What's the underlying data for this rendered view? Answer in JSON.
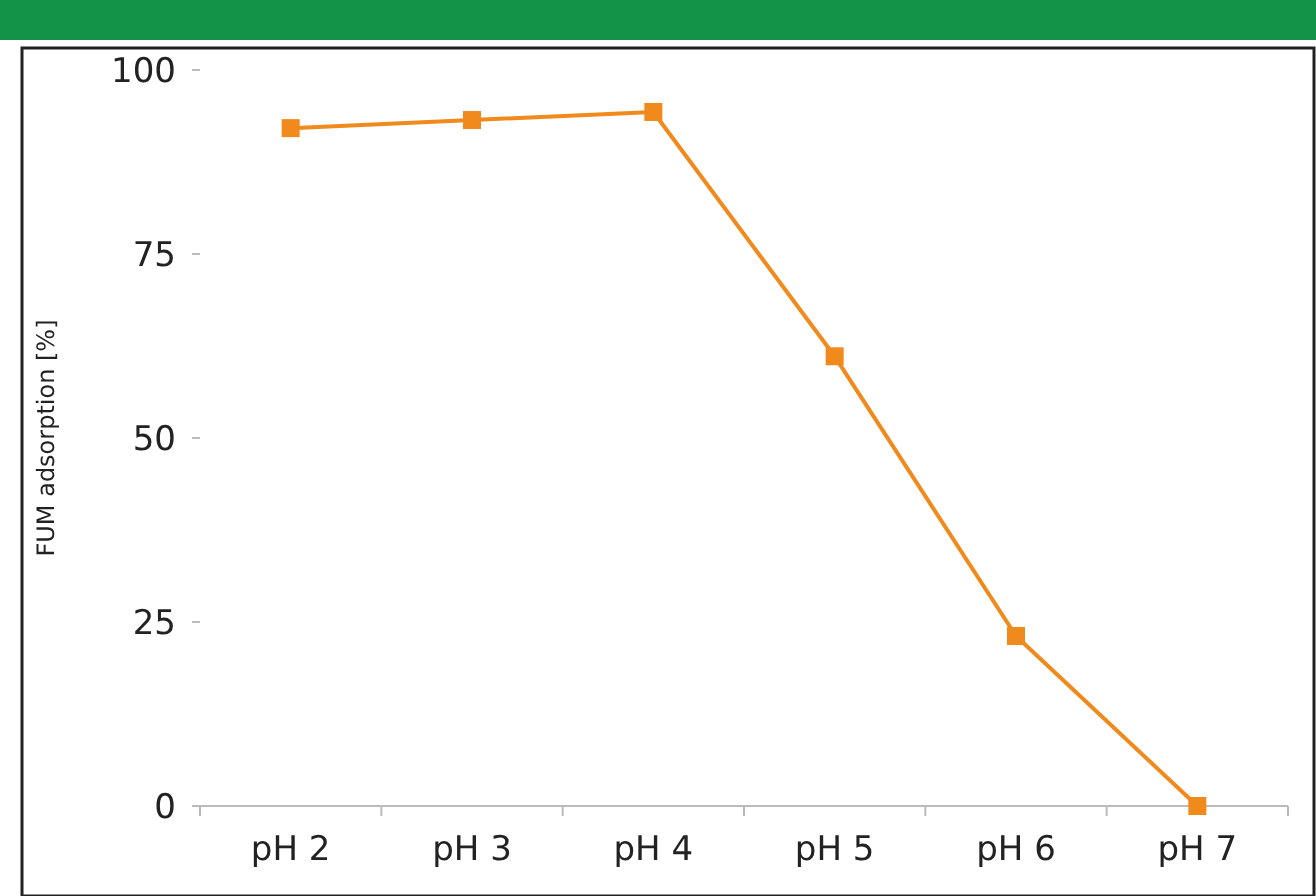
{
  "chart_data": {
    "type": "line",
    "ylabel": "FUM adsorption [%]",
    "categories": [
      "pH 2",
      "pH 3",
      "pH 4",
      "pH 5",
      "pH 6",
      "pH 7"
    ],
    "series": [
      {
        "color": "#f08a1c",
        "values": [
          92.1,
          93.2,
          94.3,
          61.1,
          23.1,
          0
        ]
      }
    ],
    "ylim": [
      0,
      100
    ],
    "yticks": [
      0,
      25,
      50,
      75,
      100
    ],
    "grid": false,
    "marker": "square",
    "line_style": "solid"
  }
}
